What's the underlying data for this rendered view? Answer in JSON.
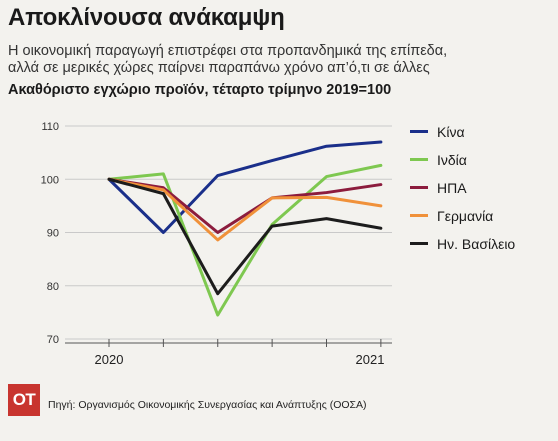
{
  "header": {
    "title": "Αποκλίνουσα ανάκαμψη",
    "subtitle_line1": "Η οικονομική παραγωγή επιστρέφει στα προπανδημικά της επίπεδα,",
    "subtitle_line2": "αλλά σε μερικές χώρες παίρνει παραπάνω χρόνο απ’ό,τι σε άλλες",
    "measure": "Ακαθόριστο εγχώριο προϊόν, τέταρτο τρίμηνο 2019=100"
  },
  "footer": {
    "logo_text": "OT",
    "source": "Πηγή: Οργανισμός Οικονομικής Συνεργασίας και Ανάπτυξης (ΟΟΣΑ)"
  },
  "chart_data": {
    "type": "line",
    "x": [
      0,
      1,
      2,
      3,
      4,
      5
    ],
    "x_tick_labels": [
      {
        "x": 0,
        "label": "2020"
      },
      {
        "x": 4.8,
        "label": "2021"
      }
    ],
    "ylim": [
      70,
      110
    ],
    "yticks": [
      70,
      80,
      90,
      100,
      110
    ],
    "grid": true,
    "legend_position": "right",
    "series": [
      {
        "name": "Κίνα",
        "color": "#1a2f8a",
        "values": [
          100,
          90.0,
          100.7,
          103.5,
          106.2,
          107.0
        ]
      },
      {
        "name": "Ινδία",
        "color": "#7ec850",
        "values": [
          100,
          101.0,
          74.5,
          91.5,
          100.5,
          102.6
        ]
      },
      {
        "name": "ΗΠΑ",
        "color": "#8c1c3d",
        "values": [
          100,
          98.4,
          90.0,
          96.5,
          97.5,
          99.0
        ]
      },
      {
        "name": "Γερμανία",
        "color": "#f0913a",
        "values": [
          100,
          98.0,
          88.6,
          96.5,
          96.6,
          95.0
        ]
      },
      {
        "name": "Ην. Βασίλειο",
        "color": "#1c1c1c",
        "values": [
          100,
          97.3,
          78.5,
          91.2,
          92.6,
          90.8
        ]
      }
    ]
  }
}
